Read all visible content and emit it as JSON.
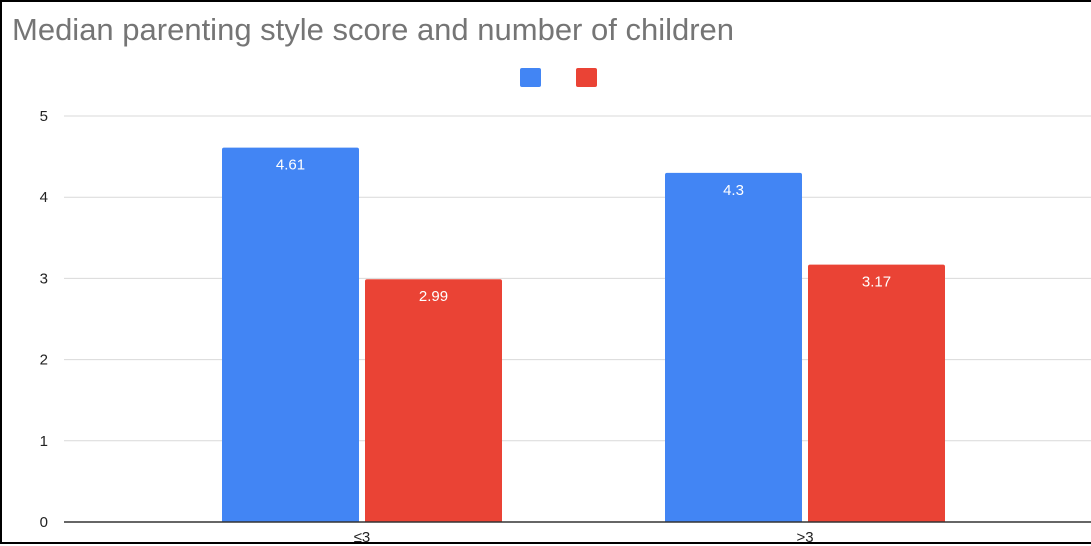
{
  "chart_data": {
    "type": "bar",
    "title": "Median parenting style score and number of children",
    "categories": [
      "≤3",
      ">3"
    ],
    "series": [
      {
        "values": [
          4.61,
          4.3
        ],
        "color": "#4285F4"
      },
      {
        "values": [
          2.99,
          3.17
        ],
        "color": "#EA4335"
      }
    ],
    "ylim": [
      0,
      5
    ],
    "yticks": [
      0,
      1,
      2,
      3,
      4,
      5
    ],
    "xlabel": "",
    "ylabel": "",
    "grid": true,
    "legend_position": "top-center",
    "data_labels": true
  }
}
